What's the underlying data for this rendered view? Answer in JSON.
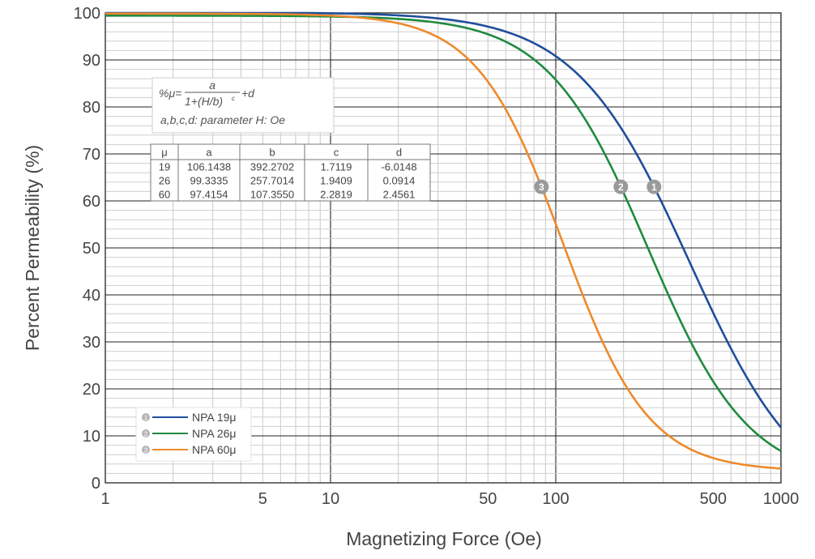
{
  "chart_data": {
    "type": "line",
    "xlabel": "Magnetizing Force (Oe)",
    "ylabel": "Percent Permeability (%)",
    "x_scale": "log",
    "xlim": [
      1,
      1000
    ],
    "ylim": [
      0,
      100
    ],
    "x_tick_values": [
      1,
      5,
      10,
      50,
      100,
      500,
      1000
    ],
    "x_tick_labels": [
      "1",
      "5",
      "10",
      "50",
      "100",
      "500",
      "1000"
    ],
    "y_tick_values": [
      0,
      10,
      20,
      30,
      40,
      50,
      60,
      70,
      80,
      90,
      100
    ],
    "y_tick_labels": [
      "0",
      "10",
      "20",
      "30",
      "40",
      "50",
      "60",
      "70",
      "80",
      "90",
      "100"
    ],
    "grid": true,
    "legend_position": "bottom-left",
    "series": [
      {
        "name": "NPA 19μ",
        "marker": "1",
        "color": "#1f4e9c",
        "mu": "19",
        "a": 106.1438,
        "b": 392.2702,
        "c": 1.7119,
        "d": -6.0148
      },
      {
        "name": "NPA 26μ",
        "marker": "2",
        "color": "#1f8a3f",
        "mu": "26",
        "a": 99.3335,
        "b": 257.7014,
        "c": 1.9409,
        "d": 0.0914
      },
      {
        "name": "NPA 60μ",
        "marker": "3",
        "color": "#ee8a2c",
        "mu": "60",
        "a": 97.4154,
        "b": 107.355,
        "c": 2.2819,
        "d": 2.4561
      }
    ],
    "curve_labels_at_percent": [
      63,
      63,
      63
    ],
    "formula": {
      "prefix": "%μ=",
      "numerator": "a",
      "denominator": "1+(H/b)",
      "exponent": "c",
      "suffix": "+d",
      "note": "a,b,c,d: parameter  H: Oe"
    },
    "parameter_table": {
      "headers": [
        "μ",
        "a",
        "b",
        "c",
        "d"
      ],
      "rows": [
        [
          "19",
          "106.1438",
          "392.2702",
          "1.7119",
          "-6.0148"
        ],
        [
          "26",
          "99.3335",
          "257.7014",
          "1.9409",
          "0.0914"
        ],
        [
          "60",
          "97.4154",
          "107.3550",
          "2.2819",
          "2.4561"
        ]
      ]
    }
  }
}
